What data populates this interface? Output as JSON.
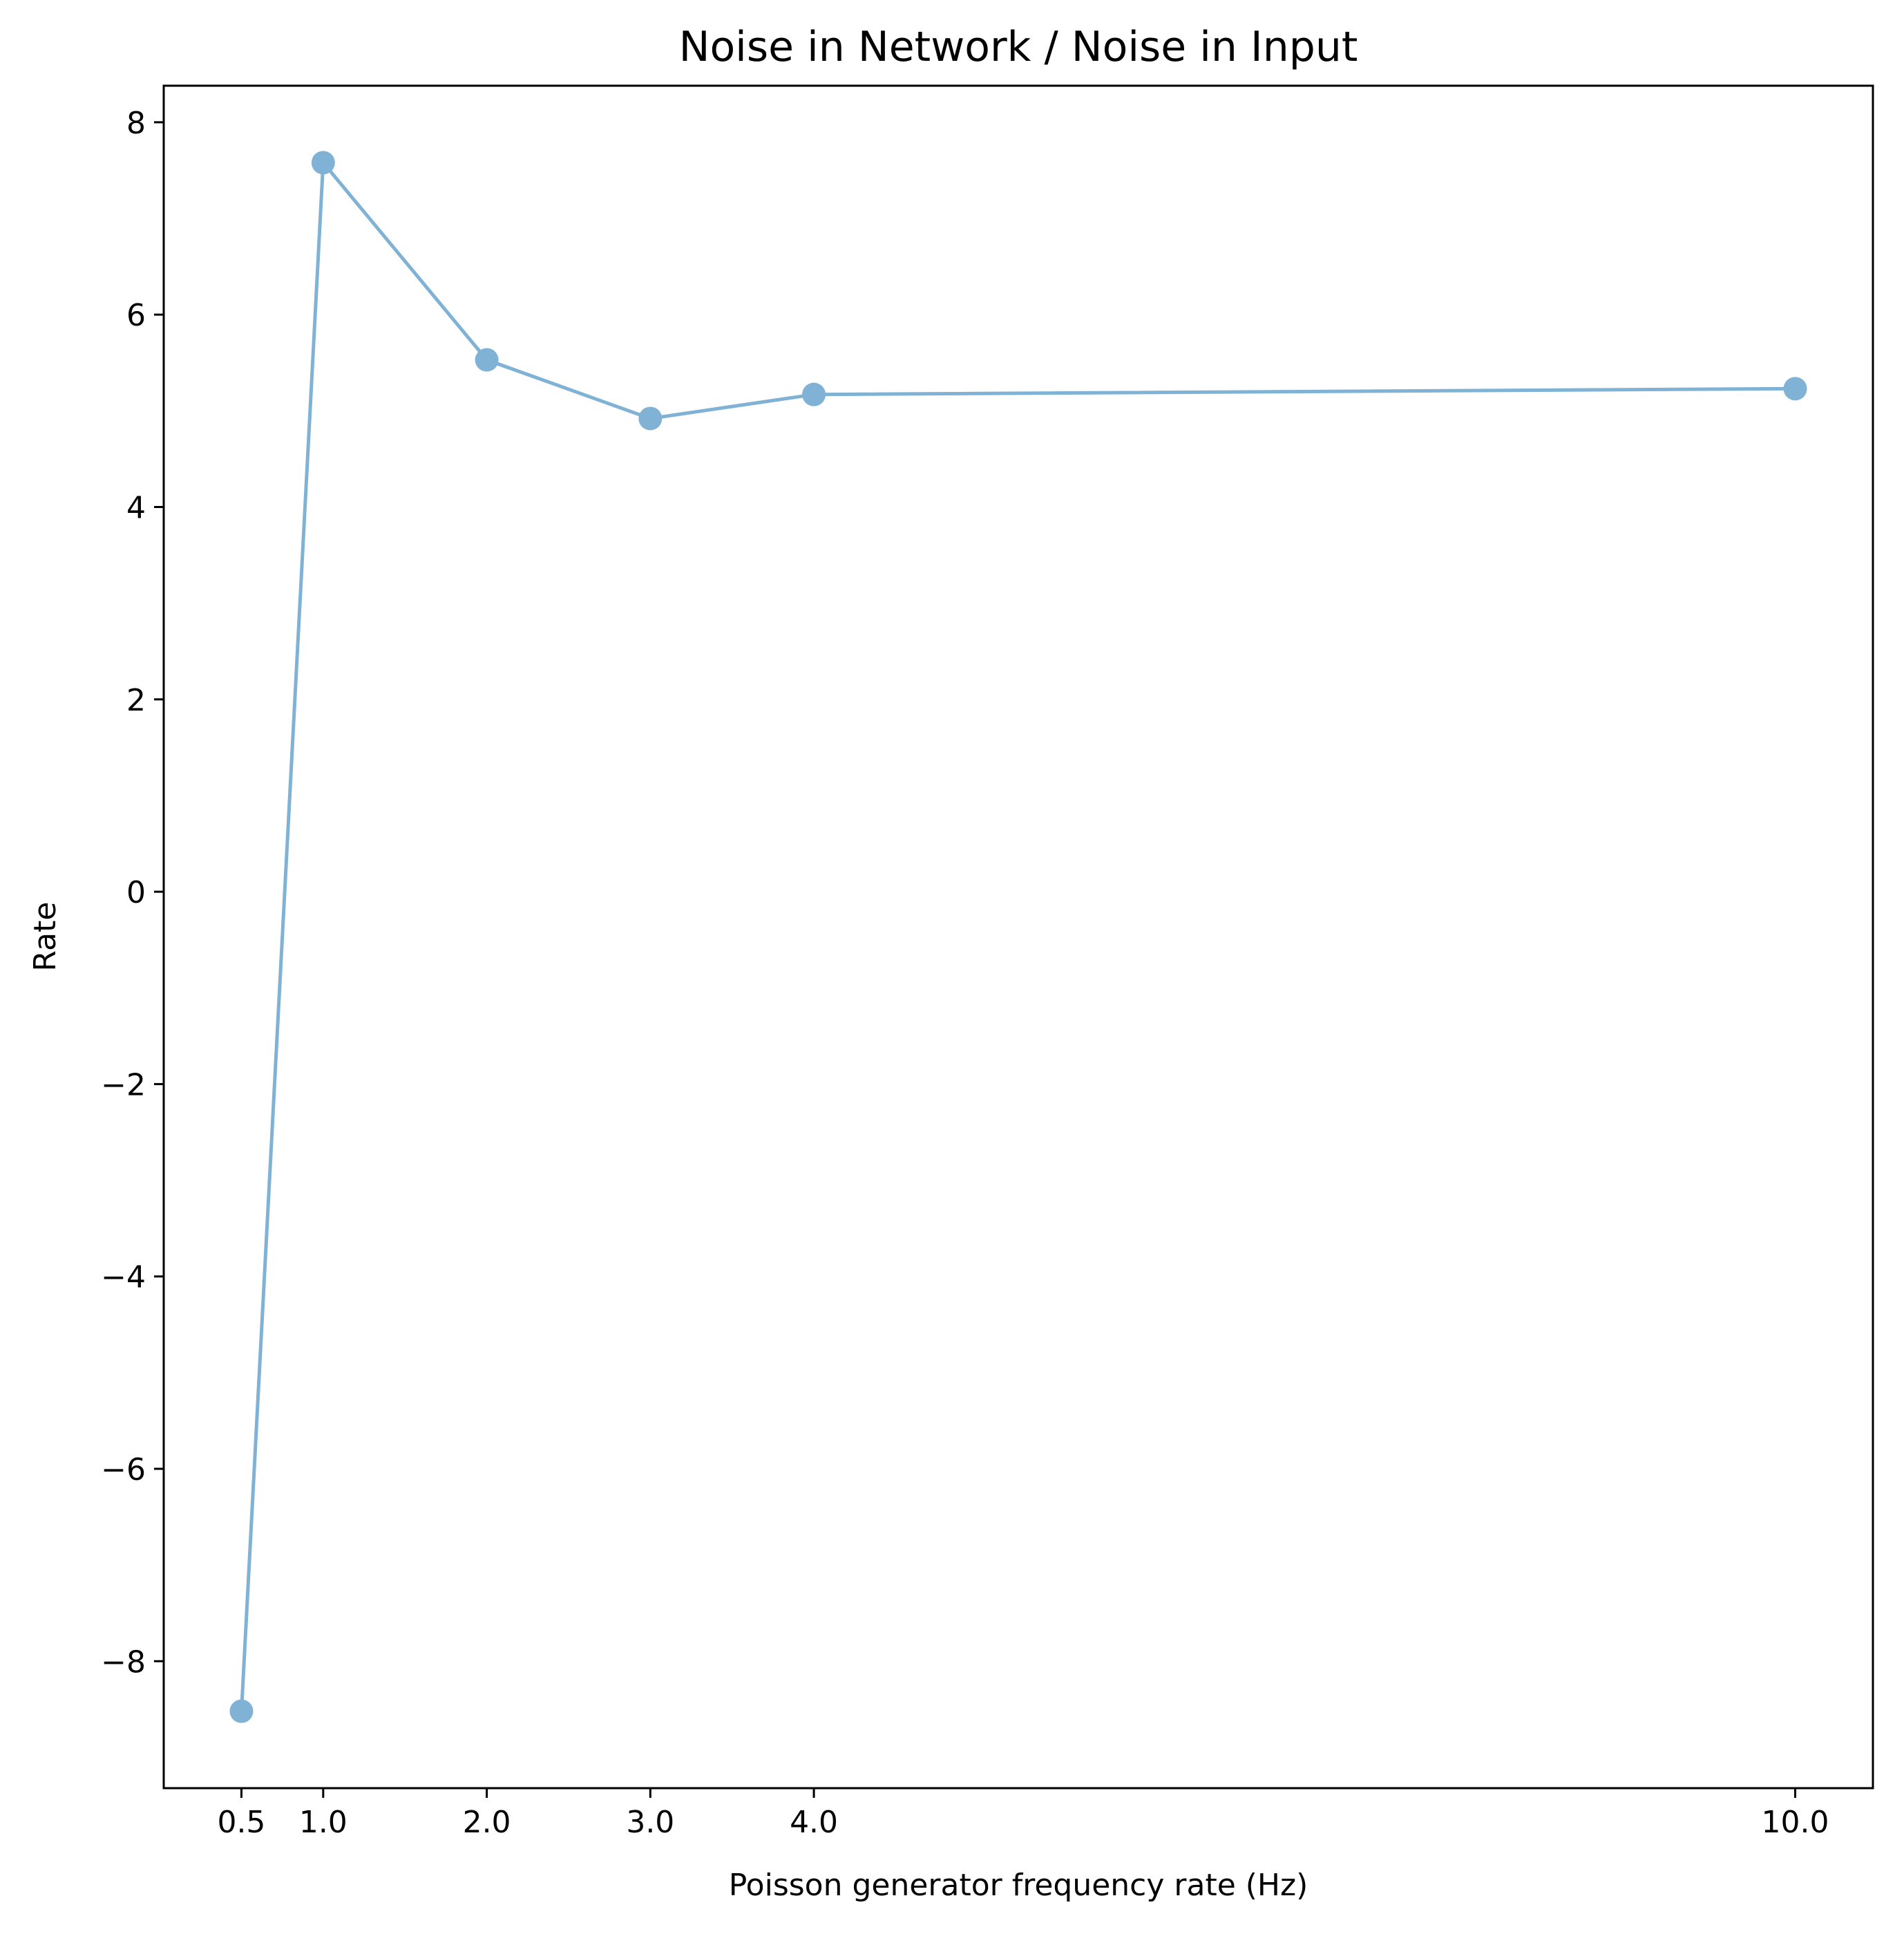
{
  "chart_data": {
    "type": "line",
    "title": "Noise in Network / Noise in Input",
    "xlabel": "Poisson generator frequency rate (Hz)",
    "ylabel": "Rate",
    "x": [
      0.5,
      1.0,
      2.0,
      3.0,
      4.0,
      10.0
    ],
    "x_tick_labels": [
      "0.5",
      "1.0",
      "2.0",
      "3.0",
      "4.0",
      "10.0"
    ],
    "y_ticks": [
      8,
      6,
      4,
      2,
      0,
      -2,
      -4,
      -6,
      -8
    ],
    "y_tick_labels": [
      "8",
      "6",
      "4",
      "2",
      "0",
      "−2",
      "−4",
      "−6",
      "−8"
    ],
    "series": [
      {
        "values": [
          -8.52,
          7.58,
          5.53,
          4.92,
          5.17,
          5.23
        ],
        "color": "#7fb2d5",
        "marker": "circle"
      }
    ],
    "xlim": [
      0.025,
      10.475
    ],
    "ylim": [
      -9.32,
      8.38
    ],
    "grid": false,
    "legend": "none"
  }
}
